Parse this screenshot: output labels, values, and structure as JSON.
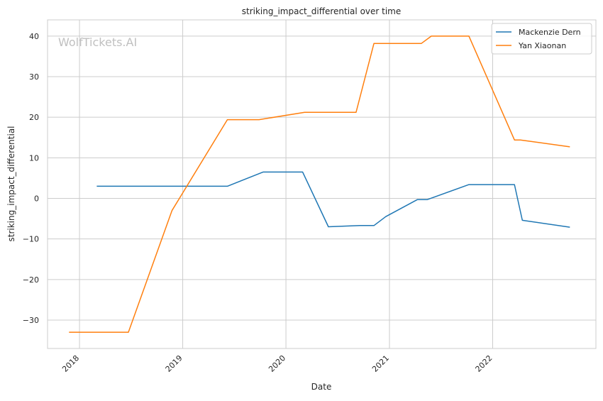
{
  "watermark": "WolfTickets.AI",
  "colors": {
    "grid": "#cccccc",
    "axes": "#cccccc",
    "watermark": "#c0c0c0"
  },
  "chart_data": {
    "type": "line",
    "title": "striking_impact_differential over time",
    "xlabel": "Date",
    "ylabel": "striking_impact_differential",
    "x_scale": "date",
    "xlim": [
      "2017-09-10",
      "2023-01-01"
    ],
    "ylim": [
      -37,
      44
    ],
    "x_ticks": [
      {
        "date": "2018-01-01",
        "label": "2018"
      },
      {
        "date": "2019-01-01",
        "label": "2019"
      },
      {
        "date": "2020-01-01",
        "label": "2020"
      },
      {
        "date": "2021-01-01",
        "label": "2021"
      },
      {
        "date": "2022-01-01",
        "label": "2022"
      }
    ],
    "y_ticks": [
      {
        "value": 40,
        "label": "40"
      },
      {
        "value": 30,
        "label": "30"
      },
      {
        "value": 20,
        "label": "20"
      },
      {
        "value": 10,
        "label": "10"
      },
      {
        "value": 0,
        "label": "0"
      },
      {
        "value": -10,
        "label": "−10"
      },
      {
        "value": -20,
        "label": "−20"
      },
      {
        "value": -30,
        "label": "−30"
      }
    ],
    "grid": true,
    "legend": "top-right",
    "series": [
      {
        "name": "Mackenzie Dern",
        "color": "#1f77b4",
        "points": [
          {
            "x": "2018-03-03",
            "y": 3.0
          },
          {
            "x": "2019-06-08",
            "y": 3.0
          },
          {
            "x": "2019-10-12",
            "y": 6.5
          },
          {
            "x": "2020-02-29",
            "y": 6.5
          },
          {
            "x": "2020-05-30",
            "y": -7.0
          },
          {
            "x": "2020-09-19",
            "y": -6.7
          },
          {
            "x": "2020-11-07",
            "y": -6.7
          },
          {
            "x": "2020-12-19",
            "y": -4.5
          },
          {
            "x": "2021-04-10",
            "y": -0.3
          },
          {
            "x": "2021-05-15",
            "y": -0.3
          },
          {
            "x": "2021-10-09",
            "y": 3.4
          },
          {
            "x": "2022-03-19",
            "y": 3.4
          },
          {
            "x": "2022-04-16",
            "y": -5.4
          },
          {
            "x": "2022-10-01",
            "y": -7.1
          }
        ]
      },
      {
        "name": "Yan Xiaonan",
        "color": "#ff7f0e",
        "points": [
          {
            "x": "2017-11-25",
            "y": -33.0
          },
          {
            "x": "2018-06-23",
            "y": -33.0
          },
          {
            "x": "2018-11-24",
            "y": -3.0
          },
          {
            "x": "2019-06-08",
            "y": 19.4
          },
          {
            "x": "2019-09-28",
            "y": 19.4
          },
          {
            "x": "2020-03-07",
            "y": 21.2
          },
          {
            "x": "2020-09-05",
            "y": 21.2
          },
          {
            "x": "2020-11-07",
            "y": 38.2
          },
          {
            "x": "2021-04-24",
            "y": 38.2
          },
          {
            "x": "2021-05-29",
            "y": 40.0
          },
          {
            "x": "2021-10-09",
            "y": 40.0
          },
          {
            "x": "2022-03-19",
            "y": 14.4
          },
          {
            "x": "2022-04-09",
            "y": 14.4
          },
          {
            "x": "2022-10-01",
            "y": 12.7
          }
        ]
      }
    ]
  }
}
